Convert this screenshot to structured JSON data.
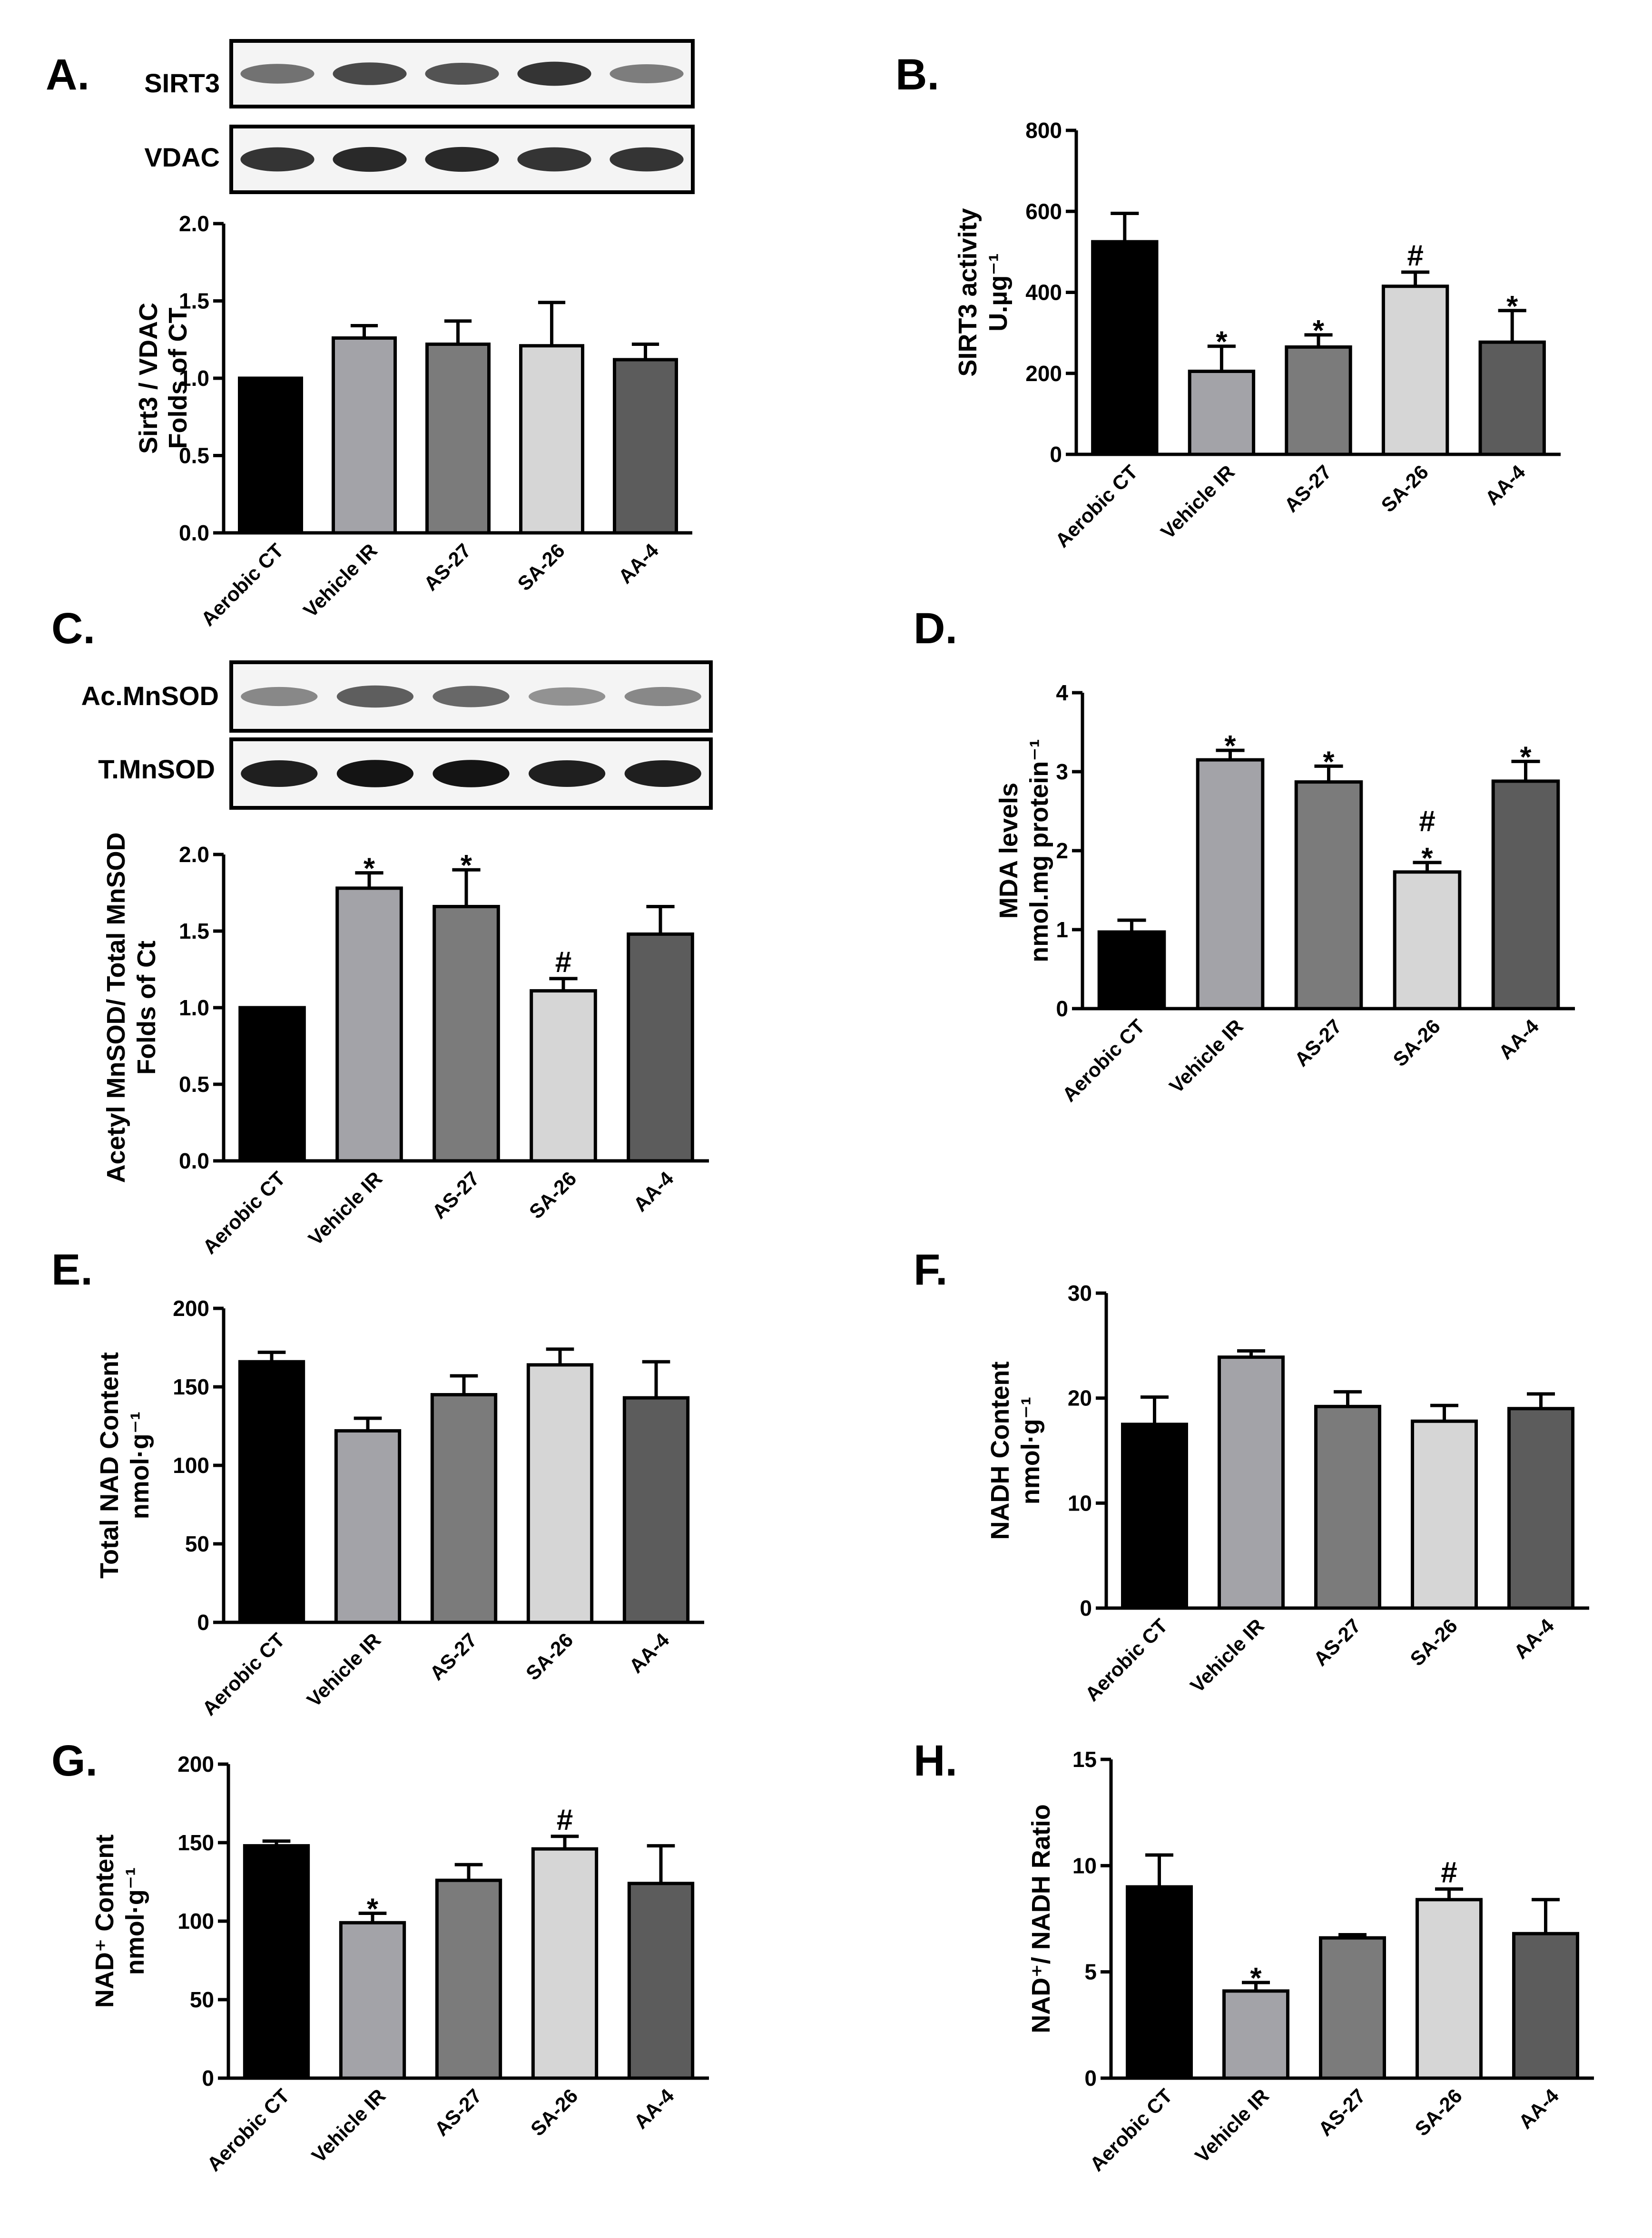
{
  "colors": {
    "Aerobic CT": "#000000",
    "Vehicle IR": "#a3a3a8",
    "AS-27": "#7b7b7b",
    "SA-26": "#d6d6d6",
    "AA-4": "#5c5c5c"
  },
  "panels": [
    {
      "id": "A",
      "letter": "A.",
      "blots": [
        {
          "label": "SIRT3",
          "band_intensity": [
            0.55,
            0.75,
            0.7,
            0.85,
            0.5
          ]
        },
        {
          "label": "VDAC",
          "band_intensity": [
            0.85,
            0.9,
            0.9,
            0.85,
            0.85
          ]
        }
      ]
    },
    {
      "id": "C",
      "letter": "C.",
      "blots": [
        {
          "label": "Ac.MnSOD",
          "band_intensity": [
            0.45,
            0.65,
            0.6,
            0.4,
            0.45
          ]
        },
        {
          "label": "T.MnSOD",
          "band_intensity": [
            0.95,
            1.0,
            1.0,
            0.95,
            0.95
          ]
        }
      ]
    },
    {
      "id": "B",
      "letter": "B."
    },
    {
      "id": "D",
      "letter": "D."
    },
    {
      "id": "E",
      "letter": "E."
    },
    {
      "id": "F",
      "letter": "F."
    },
    {
      "id": "G",
      "letter": "G."
    },
    {
      "id": "H",
      "letter": "H."
    }
  ],
  "chart_data": [
    {
      "panel": "A",
      "type": "bar",
      "categories": [
        "Aerobic CT",
        "Vehicle IR",
        "AS-27",
        "SA-26",
        "AA-4"
      ],
      "values": [
        1.0,
        1.26,
        1.22,
        1.21,
        1.12
      ],
      "errors": [
        0,
        0.08,
        0.15,
        0.28,
        0.1
      ],
      "annotations": [
        "",
        "",
        "",
        "",
        ""
      ],
      "ylabel_lines": [
        "Sirt3 / VDAC",
        "Folds of CT"
      ],
      "ylim": [
        0,
        2.0
      ],
      "yticks": [
        "0.0",
        "0.5",
        "1.0",
        "1.5",
        "2.0"
      ]
    },
    {
      "panel": "B",
      "type": "bar",
      "categories": [
        "Aerobic CT",
        "Vehicle IR",
        "AS-27",
        "SA-26",
        "AA-4"
      ],
      "values": [
        525,
        205,
        265,
        415,
        277
      ],
      "errors": [
        70,
        62,
        30,
        35,
        78
      ],
      "annotations": [
        "",
        "*",
        "*",
        "#",
        "*"
      ],
      "ylabel_lines": [
        "SIRT3 activity",
        "U.µg⁻¹"
      ],
      "ylim": [
        0,
        800
      ],
      "yticks": [
        "0",
        "200",
        "400",
        "600",
        "800"
      ]
    },
    {
      "panel": "C",
      "type": "bar",
      "categories": [
        "Aerobic CT",
        "Vehicle IR",
        "AS-27",
        "SA-26",
        "AA-4"
      ],
      "values": [
        1.0,
        1.78,
        1.66,
        1.11,
        1.48
      ],
      "errors": [
        0,
        0.1,
        0.24,
        0.08,
        0.18
      ],
      "annotations": [
        "",
        "*",
        "*",
        "#",
        ""
      ],
      "ylabel_lines": [
        "Acetyl MnSOD/ Total MnSOD",
        "Folds of Ct"
      ],
      "ylim": [
        0,
        2.0
      ],
      "yticks": [
        "0.0",
        "0.5",
        "1.0",
        "1.5",
        "2.0"
      ]
    },
    {
      "panel": "D",
      "type": "bar",
      "categories": [
        "Aerobic CT",
        "Vehicle IR",
        "AS-27",
        "SA-26",
        "AA-4"
      ],
      "values": [
        0.97,
        3.15,
        2.87,
        1.73,
        2.88
      ],
      "errors": [
        0.15,
        0.12,
        0.2,
        0.12,
        0.25
      ],
      "annotations": [
        "",
        "*",
        "*",
        "#\n*",
        "*"
      ],
      "ylabel_lines": [
        "MDA levels",
        "nmol.mg protein⁻¹"
      ],
      "ylim": [
        0,
        4
      ],
      "yticks": [
        "0",
        "1",
        "2",
        "3",
        "4"
      ]
    },
    {
      "panel": "E",
      "type": "bar",
      "categories": [
        "Aerobic CT",
        "Vehicle IR",
        "AS-27",
        "SA-26",
        "AA-4"
      ],
      "values": [
        166,
        122,
        145,
        164,
        143
      ],
      "errors": [
        6,
        8,
        12,
        10,
        23
      ],
      "annotations": [
        "",
        "",
        "",
        "",
        ""
      ],
      "ylabel_lines": [
        "Total NAD Content",
        "nmol·g⁻¹"
      ],
      "ylim": [
        0,
        200
      ],
      "yticks": [
        "0",
        "50",
        "100",
        "150",
        "200"
      ]
    },
    {
      "panel": "F",
      "type": "bar",
      "categories": [
        "Aerobic CT",
        "Vehicle IR",
        "AS-27",
        "SA-26",
        "AA-4"
      ],
      "values": [
        17.5,
        23.9,
        19.2,
        17.8,
        19.0
      ],
      "errors": [
        2.6,
        0.6,
        1.4,
        1.5,
        1.4
      ],
      "annotations": [
        "",
        "",
        "",
        "",
        ""
      ],
      "ylabel_lines": [
        "NADH Content",
        "nmol·g⁻¹"
      ],
      "ylim": [
        0,
        30
      ],
      "yticks": [
        "0",
        "10",
        "20",
        "30"
      ]
    },
    {
      "panel": "G",
      "type": "bar",
      "categories": [
        "Aerobic CT",
        "Vehicle IR",
        "AS-27",
        "SA-26",
        "AA-4"
      ],
      "values": [
        148,
        99,
        126,
        146,
        124
      ],
      "errors": [
        3,
        6,
        10,
        8,
        24
      ],
      "annotations": [
        "",
        "*",
        "",
        "#",
        ""
      ],
      "ylabel_lines": [
        "NAD⁺ Content",
        "nmol·g⁻¹"
      ],
      "ylim": [
        0,
        200
      ],
      "yticks": [
        "0",
        "50",
        "100",
        "150",
        "200"
      ]
    },
    {
      "panel": "H",
      "type": "bar",
      "categories": [
        "Aerobic CT",
        "Vehicle IR",
        "AS-27",
        "SA-26",
        "AA-4"
      ],
      "values": [
        9.0,
        4.1,
        6.6,
        8.4,
        6.8
      ],
      "errors": [
        1.5,
        0.4,
        0.15,
        0.5,
        1.6
      ],
      "annotations": [
        "",
        "*",
        "",
        "#",
        ""
      ],
      "ylabel_lines": [
        "NAD⁺/ NADH Ratio"
      ],
      "ylim": [
        0,
        15
      ],
      "yticks": [
        "0",
        "5",
        "10",
        "15"
      ]
    }
  ]
}
